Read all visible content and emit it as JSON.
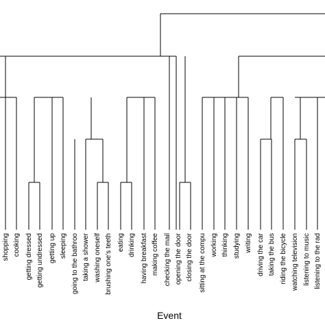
{
  "chart_data": {
    "type": "dendrogram",
    "xlabel": "Event",
    "leaves": [
      "shopping",
      "cooking",
      "getting dressed",
      "getting undressed",
      "getting up",
      "sleeping",
      "going to the bathroo",
      "taking a shower",
      "washing oneself",
      "brushing one's teeth",
      "eating",
      "drinking",
      "having breakfast",
      "making coffee",
      "checking the mail",
      "opening the door",
      "closing the door",
      "sitting at the compu",
      "working",
      "thinking",
      "studying",
      "writing",
      "driving the car",
      "taking the bus",
      "riding the bicycle",
      "watching television",
      "listening to music",
      "listening to the rad"
    ]
  }
}
